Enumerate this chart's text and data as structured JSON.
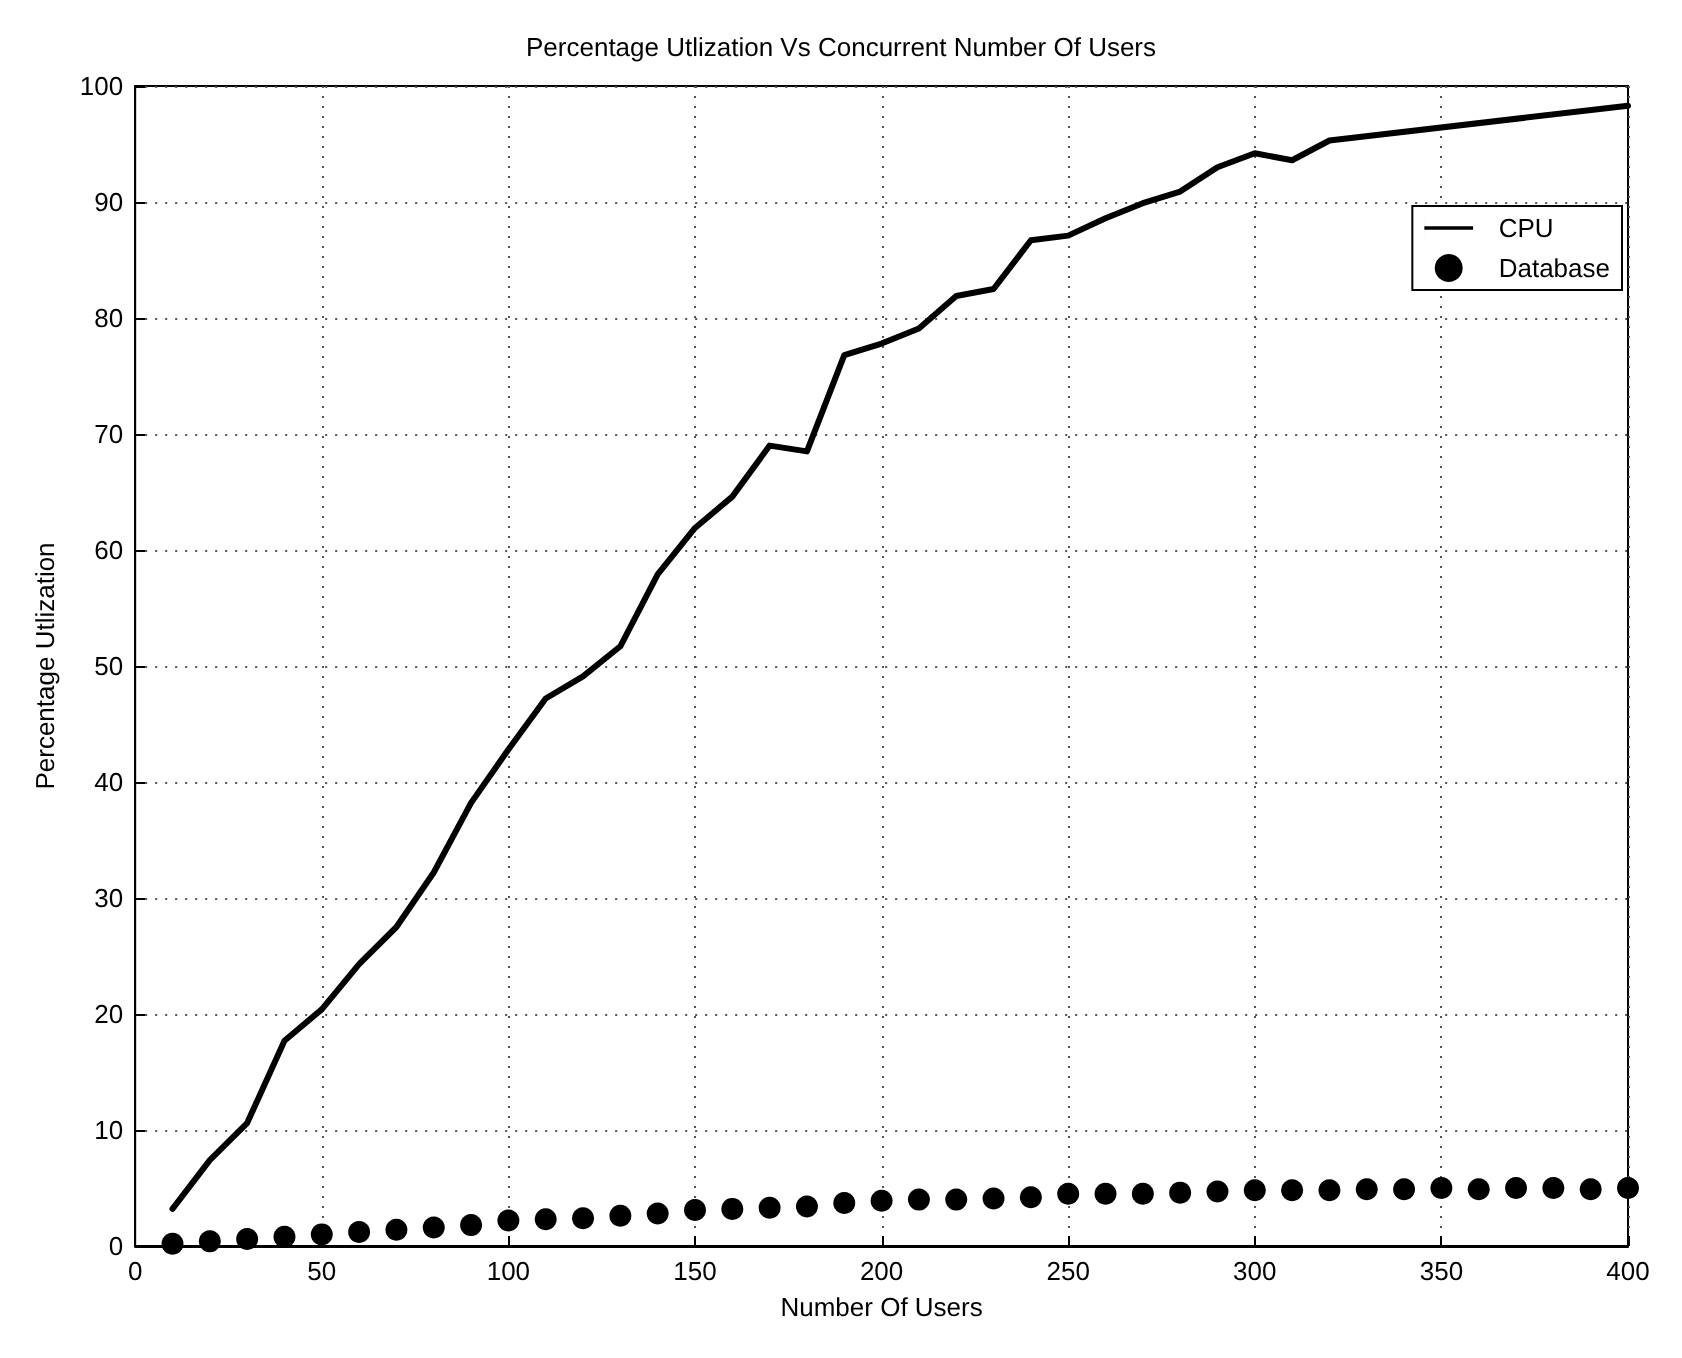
{
  "chart_data": {
    "type": "line",
    "title": "Percentage Utlization Vs Concurrent Number Of Users",
    "xlabel": "Number Of Users",
    "ylabel": "Percentage Utlization",
    "x": [
      10,
      20,
      30,
      40,
      50,
      60,
      70,
      80,
      90,
      100,
      110,
      120,
      130,
      140,
      150,
      160,
      170,
      180,
      190,
      200,
      210,
      220,
      230,
      240,
      250,
      260,
      270,
      280,
      290,
      300,
      310,
      320,
      330,
      340,
      350,
      360,
      370,
      380,
      390,
      400
    ],
    "series": [
      {
        "name": "CPU",
        "color": "#000000",
        "marker": "none",
        "line_style": "solid",
        "values": [
          3.2,
          7.4,
          10.6,
          17.7,
          20.4,
          24.3,
          27.5,
          32.2,
          38.2,
          42.8,
          47.2,
          49.1,
          51.7,
          57.9,
          61.9,
          64.6,
          69.0,
          68.5,
          76.8,
          77.8,
          79.1,
          81.9,
          82.5,
          86.7,
          87.1,
          88.6,
          89.9,
          90.9,
          93.0,
          94.2,
          93.6,
          95.3,
          null,
          null,
          null,
          null,
          null,
          null,
          null,
          98.3
        ]
      },
      {
        "name": "Database",
        "type": "scatter",
        "color": "#000000",
        "marker": "circle",
        "values": [
          0.2,
          0.4,
          0.6,
          0.8,
          1.0,
          1.2,
          1.4,
          1.6,
          1.8,
          2.2,
          2.3,
          2.4,
          2.6,
          2.8,
          3.1,
          3.2,
          3.3,
          3.4,
          3.7,
          3.9,
          4.0,
          4.0,
          4.1,
          4.2,
          4.5,
          4.5,
          4.5,
          4.6,
          4.7,
          4.8,
          4.8,
          4.8,
          4.9,
          4.9,
          5.0,
          4.9,
          5.0,
          5.0,
          4.9,
          5.0
        ]
      }
    ],
    "xlim": [
      0,
      400
    ],
    "xticks": [
      0,
      50,
      100,
      150,
      200,
      250,
      300,
      350,
      400
    ],
    "ylim": [
      0,
      100
    ],
    "yticks": [
      0,
      10,
      20,
      30,
      40,
      50,
      60,
      70,
      80,
      90,
      100
    ],
    "grid": true,
    "legend": "top right"
  }
}
